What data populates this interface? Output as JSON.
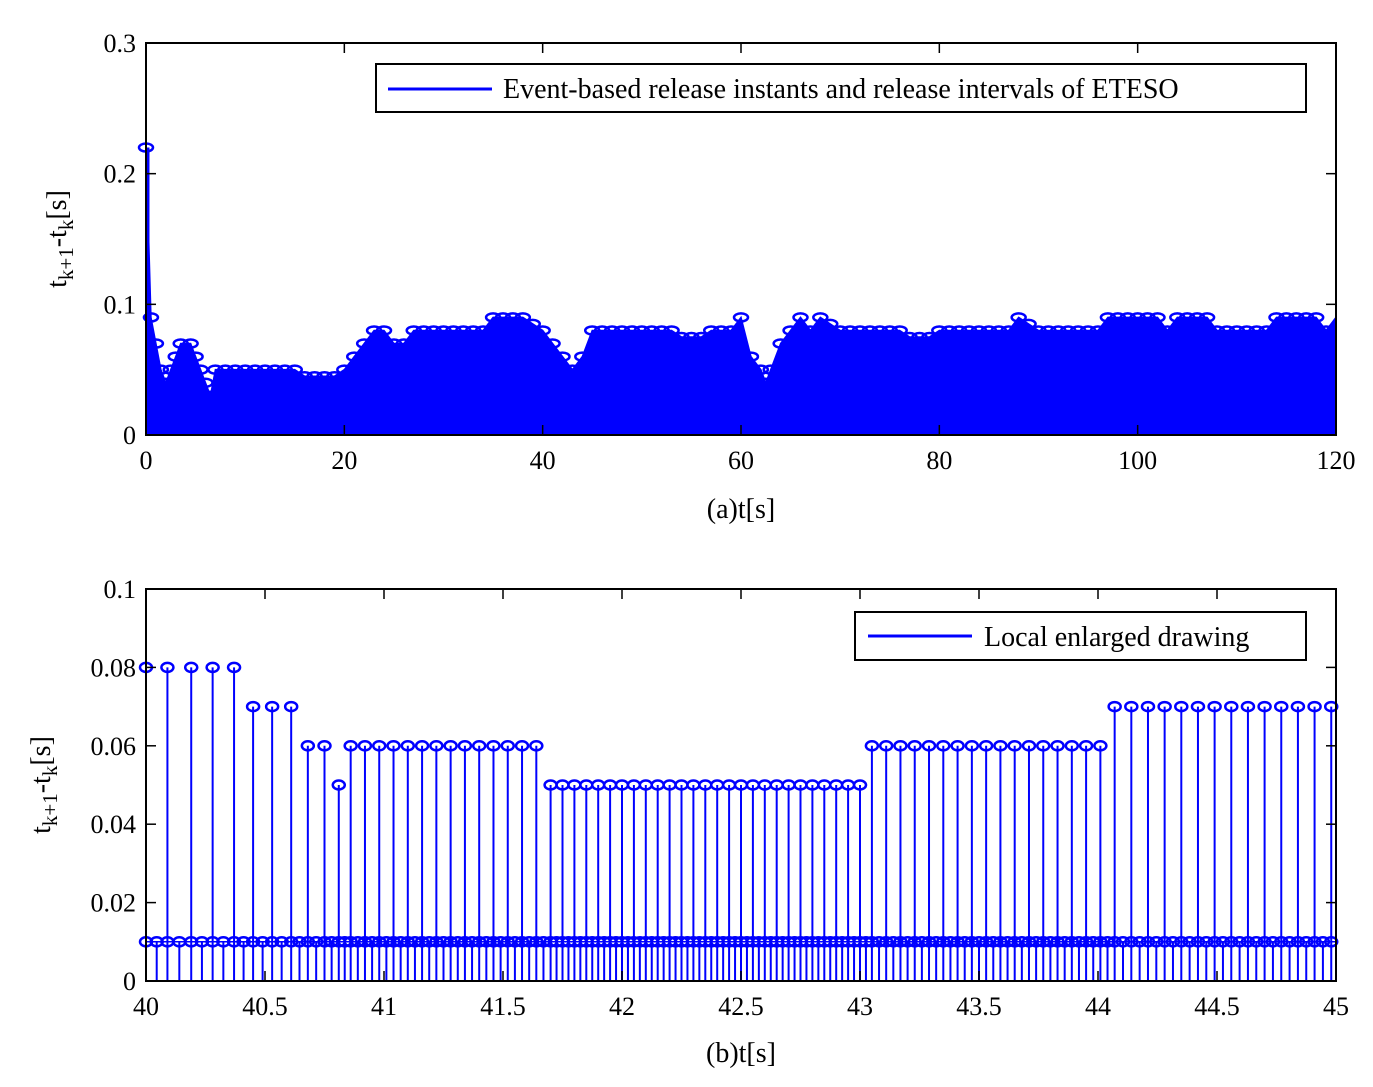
{
  "chart_data": [
    {
      "type": "stem",
      "xlabel": "(a)t[s]",
      "ylabel": "t_{k+1}-t_k[s]",
      "ylabel_parts": {
        "t1": "t",
        "s1": "k+1",
        "mid": "-t",
        "s2": "k",
        "unit": "[s]"
      },
      "xlim": [
        0,
        120
      ],
      "ylim": [
        0,
        0.3
      ],
      "xticks": [
        0,
        20,
        40,
        60,
        80,
        100,
        120
      ],
      "xtick_labels": [
        "0",
        "20",
        "40",
        "60",
        "80",
        "100",
        "120"
      ],
      "yticks": [
        0,
        0.1,
        0.2,
        0.3
      ],
      "ytick_labels": [
        "0",
        "0.1",
        "0.2",
        "0.3"
      ],
      "legend": {
        "label": "Event-based release instants and release intervals of ETESO",
        "placement": "top-right"
      },
      "color": "#0000FF",
      "series": [
        {
          "label": "Event-based release instants and release intervals of ETESO",
          "envelope": [
            [
              0,
              0.22
            ],
            [
              0.5,
              0.09
            ],
            [
              1,
              0.07
            ],
            [
              1.5,
              0.05
            ],
            [
              2,
              0.04
            ],
            [
              2.5,
              0.05
            ],
            [
              3,
              0.06
            ],
            [
              3.5,
              0.07
            ],
            [
              4.5,
              0.07
            ],
            [
              5,
              0.06
            ],
            [
              5.5,
              0.05
            ],
            [
              6,
              0.04
            ],
            [
              6.5,
              0.03
            ],
            [
              7,
              0.05
            ],
            [
              10,
              0.05
            ],
            [
              15,
              0.05
            ],
            [
              16,
              0.045
            ],
            [
              19,
              0.045
            ],
            [
              20,
              0.05
            ],
            [
              21,
              0.06
            ],
            [
              22,
              0.07
            ],
            [
              23,
              0.08
            ],
            [
              24,
              0.08
            ],
            [
              25,
              0.07
            ],
            [
              26,
              0.07
            ],
            [
              27,
              0.08
            ],
            [
              34,
              0.08
            ],
            [
              35,
              0.09
            ],
            [
              38,
              0.09
            ],
            [
              40,
              0.08
            ],
            [
              41,
              0.07
            ],
            [
              42,
              0.06
            ],
            [
              43,
              0.05
            ],
            [
              44,
              0.06
            ],
            [
              45,
              0.08
            ],
            [
              53,
              0.08
            ],
            [
              54,
              0.075
            ],
            [
              56,
              0.075
            ],
            [
              57,
              0.08
            ],
            [
              59,
              0.08
            ],
            [
              60,
              0.09
            ],
            [
              61,
              0.06
            ],
            [
              62,
              0.05
            ],
            [
              62.5,
              0.04
            ],
            [
              63,
              0.05
            ],
            [
              64,
              0.07
            ],
            [
              65,
              0.08
            ],
            [
              66,
              0.09
            ],
            [
              67,
              0.08
            ],
            [
              68,
              0.09
            ],
            [
              70,
              0.08
            ],
            [
              76,
              0.08
            ],
            [
              77,
              0.075
            ],
            [
              79,
              0.075
            ],
            [
              80,
              0.08
            ],
            [
              87,
              0.08
            ],
            [
              88,
              0.09
            ],
            [
              90,
              0.08
            ],
            [
              96,
              0.08
            ],
            [
              97,
              0.09
            ],
            [
              102,
              0.09
            ],
            [
              103,
              0.08
            ],
            [
              104,
              0.09
            ],
            [
              107,
              0.09
            ],
            [
              108,
              0.08
            ],
            [
              113,
              0.08
            ],
            [
              114,
              0.09
            ],
            [
              118,
              0.09
            ],
            [
              119,
              0.08
            ],
            [
              120,
              0.09
            ]
          ]
        }
      ]
    },
    {
      "type": "stem",
      "xlabel": "(b)t[s]",
      "ylabel": "t_{k+1}-t_k[s]",
      "ylabel_parts": {
        "t1": "t",
        "s1": "k+1",
        "mid": "-t",
        "s2": "k",
        "unit": "[s]"
      },
      "xlim": [
        40,
        45
      ],
      "ylim": [
        0,
        0.1
      ],
      "xticks": [
        40,
        40.5,
        41,
        41.5,
        42,
        42.5,
        43,
        43.5,
        44,
        44.5,
        45
      ],
      "xtick_labels": [
        "40",
        "40.5",
        "41",
        "41.5",
        "42",
        "42.5",
        "43",
        "43.5",
        "44",
        "44.5",
        "45"
      ],
      "yticks": [
        0,
        0.02,
        0.04,
        0.06,
        0.08,
        0.1
      ],
      "ytick_labels": [
        "0",
        "0.02",
        "0.04",
        "0.06",
        "0.08",
        "0.1"
      ],
      "legend": {
        "label": "Local enlarged drawing",
        "placement": "top-right"
      },
      "color": "#0000FF",
      "series": [
        {
          "label": "Local enlarged drawing",
          "x": [
            40.0,
            40.09,
            40.19,
            40.28,
            40.37,
            40.45,
            40.53,
            40.61,
            40.68,
            40.75,
            40.81,
            40.86,
            40.92,
            40.98,
            41.04,
            41.1,
            41.16,
            41.22,
            41.28,
            41.34,
            41.4,
            41.46,
            41.52,
            41.58,
            41.64,
            41.7,
            41.75,
            41.8,
            41.85,
            41.9,
            41.95,
            42.0,
            42.05,
            42.1,
            42.15,
            42.2,
            42.25,
            42.3,
            42.35,
            42.4,
            42.45,
            42.5,
            42.55,
            42.6,
            42.65,
            42.7,
            42.75,
            42.8,
            42.85,
            42.9,
            42.95,
            43.0,
            43.05,
            43.11,
            43.17,
            43.23,
            43.29,
            43.35,
            43.41,
            43.47,
            43.53,
            43.59,
            43.65,
            43.71,
            43.77,
            43.83,
            43.89,
            43.95,
            44.01,
            44.07,
            44.14,
            44.21,
            44.28,
            44.35,
            44.42,
            44.49,
            44.56,
            44.63,
            44.7,
            44.77,
            44.84,
            44.91,
            44.98
          ],
          "y": [
            0.08,
            0.08,
            0.08,
            0.08,
            0.08,
            0.07,
            0.07,
            0.07,
            0.06,
            0.06,
            0.05,
            0.06,
            0.06,
            0.06,
            0.06,
            0.06,
            0.06,
            0.06,
            0.06,
            0.06,
            0.06,
            0.06,
            0.06,
            0.06,
            0.06,
            0.05,
            0.05,
            0.05,
            0.05,
            0.05,
            0.05,
            0.05,
            0.05,
            0.05,
            0.05,
            0.05,
            0.05,
            0.05,
            0.05,
            0.05,
            0.05,
            0.05,
            0.05,
            0.05,
            0.05,
            0.05,
            0.05,
            0.05,
            0.05,
            0.05,
            0.05,
            0.05,
            0.06,
            0.06,
            0.06,
            0.06,
            0.06,
            0.06,
            0.06,
            0.06,
            0.06,
            0.06,
            0.06,
            0.06,
            0.06,
            0.06,
            0.06,
            0.06,
            0.06,
            0.07,
            0.07,
            0.07,
            0.07,
            0.07,
            0.07,
            0.07,
            0.07,
            0.07,
            0.07,
            0.07,
            0.07,
            0.07,
            0.07
          ],
          "baseline_markers_y": 0.01
        }
      ]
    }
  ]
}
